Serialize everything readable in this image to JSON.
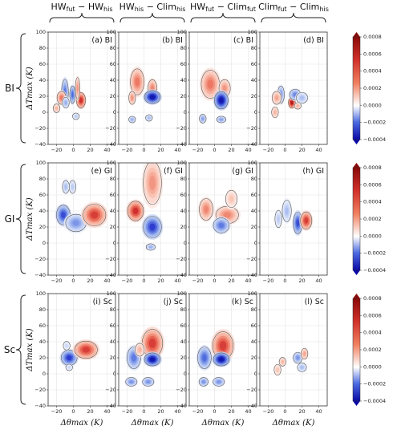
{
  "chart_data": {
    "type": "heatmap",
    "column_headers": [
      {
        "main_a": "HW",
        "sub_a": "fut",
        "dash": " − ",
        "main_b": "HW",
        "sub_b": "his"
      },
      {
        "main_a": "HW",
        "sub_a": "his",
        "dash": " − ",
        "main_b": "Clim",
        "sub_b": "his"
      },
      {
        "main_a": "HW",
        "sub_a": "fut",
        "dash": " − ",
        "main_b": "Clim",
        "sub_b": "fut"
      },
      {
        "main_a": "Clim",
        "sub_a": "fut",
        "dash": " − ",
        "main_b": "Clim",
        "sub_b": "his"
      }
    ],
    "row_labels": [
      "BI",
      "GI",
      "Sc"
    ],
    "panel_labels": [
      [
        "(a) BI",
        "(b) BI",
        "(c) BI",
        "(d) BI"
      ],
      [
        "(e) GI",
        "(f) GI",
        "(g) GI",
        "(h) GI"
      ],
      [
        "(i) Sc",
        "(j) Sc",
        "(k) Sc",
        "(l) Sc"
      ]
    ],
    "xlabel": "Δθmax (K)",
    "ylabel": "ΔTmax (K)",
    "xlim": [
      -30,
      50
    ],
    "ylim": [
      -40,
      100
    ],
    "xticks": [
      "−20",
      "0",
      "20",
      "40"
    ],
    "xtick_values": [
      -20,
      0,
      20,
      40
    ],
    "yticks": [
      "100",
      "80",
      "60",
      "40",
      "20",
      "0",
      "−20",
      "−40"
    ],
    "ytick_values": [
      100,
      80,
      60,
      40,
      20,
      0,
      -20,
      -40
    ],
    "colorbar": {
      "ticks": [
        "0.0008",
        "0.0006",
        "0.0004",
        "0.0002",
        "0.0000",
        "−0.0002",
        "−0.0004"
      ],
      "tick_values": [
        0.0008,
        0.0006,
        0.0004,
        0.0002,
        0.0,
        -0.0002,
        -0.0004
      ],
      "range": [
        -0.0004,
        0.0008
      ],
      "colors": {
        "min": "#0a0aa6",
        "zero": "#ffffff",
        "max": "#8a0a0a"
      }
    },
    "grid": true,
    "panels": [
      [
        {
          "features": [
            [
              -10,
              25,
              3,
              12,
              -1
            ],
            [
              -1,
              22,
              2.5,
              8,
              -1.1
            ],
            [
              9,
              15,
              4,
              7,
              1.4
            ],
            [
              -14,
              18,
              4,
              6,
              0.9
            ],
            [
              5,
              30,
              2,
              10,
              0.7
            ],
            [
              -9,
              12,
              3,
              5,
              -0.6
            ],
            [
              -20,
              5,
              3,
              4,
              0.5
            ],
            [
              3,
              -5,
              3,
              3,
              -0.4
            ]
          ]
        },
        {
          "features": [
            [
              -8,
              38,
              6,
              12,
              0.9
            ],
            [
              10,
              30,
              4,
              8,
              0.8
            ],
            [
              10,
              19,
              7,
              6,
              -1.8
            ],
            [
              -14,
              18,
              3,
              6,
              0.7
            ],
            [
              -14,
              -9,
              3,
              3,
              -0.6
            ],
            [
              6,
              -7,
              3,
              3,
              -0.5
            ]
          ]
        },
        {
          "features": [
            [
              -5,
              35,
              8,
              13,
              0.9
            ],
            [
              12,
              30,
              5,
              8,
              0.7
            ],
            [
              8,
              15,
              6,
              8,
              -1.8
            ],
            [
              -14,
              -8,
              3,
              4,
              -0.7
            ],
            [
              8,
              -9,
              4,
              3,
              -0.7
            ]
          ]
        },
        {
          "features": [
            [
              -5,
              22,
              3,
              8,
              -0.8
            ],
            [
              8,
              12,
              3,
              5,
              1.7
            ],
            [
              12,
              22,
              5,
              5,
              -0.9
            ],
            [
              -10,
              18,
              4,
              6,
              0.6
            ],
            [
              -12,
              0,
              3,
              5,
              0.5
            ],
            [
              15,
              8,
              3,
              3,
              0.5
            ],
            [
              20,
              18,
              5,
              5,
              -0.5
            ]
          ]
        }
      ],
      [
        {
          "features": [
            [
              -12,
              35,
              6,
              9,
              -1.3
            ],
            [
              3,
              25,
              9,
              8,
              -0.8
            ],
            [
              25,
              35,
              10,
              10,
              1.3
            ],
            [
              -9,
              70,
              3,
              6,
              -0.5
            ],
            [
              -1,
              70,
              3,
              6,
              -0.4
            ]
          ]
        },
        {
          "features": [
            [
              -10,
              40,
              7,
              9,
              1.4
            ],
            [
              10,
              20,
              8,
              10,
              -1.4
            ],
            [
              10,
              75,
              8,
              20,
              0.7
            ],
            [
              8,
              -5,
              4,
              3,
              -0.6
            ]
          ]
        },
        {
          "features": [
            [
              -10,
              42,
              6,
              10,
              0.8
            ],
            [
              15,
              35,
              10,
              8,
              0.8
            ],
            [
              8,
              22,
              7,
              7,
              -1.0
            ],
            [
              20,
              55,
              5,
              8,
              0.4
            ]
          ]
        },
        {
          "features": [
            [
              15,
              25,
              4,
              10,
              -1.3
            ],
            [
              25,
              28,
              5,
              8,
              1.3
            ],
            [
              2,
              40,
              4,
              10,
              -0.5
            ],
            [
              -8,
              30,
              3,
              8,
              -0.4
            ]
          ]
        }
      ],
      [
        {
          "features": [
            [
              -5,
              20,
              7,
              7,
              -1.4
            ],
            [
              15,
              30,
              10,
              8,
              1.3
            ],
            [
              -8,
              35,
              3,
              4,
              -0.3
            ],
            [
              -5,
              8,
              3,
              3,
              -0.3
            ]
          ]
        },
        {
          "features": [
            [
              10,
              38,
              9,
              13,
              1.3
            ],
            [
              10,
              18,
              7,
              6,
              -1.8
            ],
            [
              -12,
              20,
              6,
              10,
              -1.0
            ],
            [
              -15,
              -10,
              5,
              4,
              -0.8
            ],
            [
              5,
              -10,
              5,
              4,
              -0.8
            ],
            [
              -5,
              30,
              4,
              6,
              0.5
            ]
          ]
        },
        {
          "features": [
            [
              10,
              35,
              9,
              13,
              1.3
            ],
            [
              8,
              18,
              7,
              6,
              -1.8
            ],
            [
              -12,
              20,
              6,
              10,
              -1.1
            ],
            [
              -13,
              -10,
              4,
              4,
              -0.8
            ],
            [
              5,
              -10,
              5,
              4,
              -0.8
            ]
          ]
        },
        {
          "features": [
            [
              15,
              20,
              4,
              5,
              -0.8
            ],
            [
              23,
              25,
              3,
              5,
              0.6
            ],
            [
              -3,
              15,
              3,
              4,
              0.5
            ],
            [
              -9,
              5,
              3,
              5,
              0.4
            ],
            [
              20,
              8,
              4,
              4,
              -0.5
            ]
          ]
        }
      ]
    ]
  }
}
